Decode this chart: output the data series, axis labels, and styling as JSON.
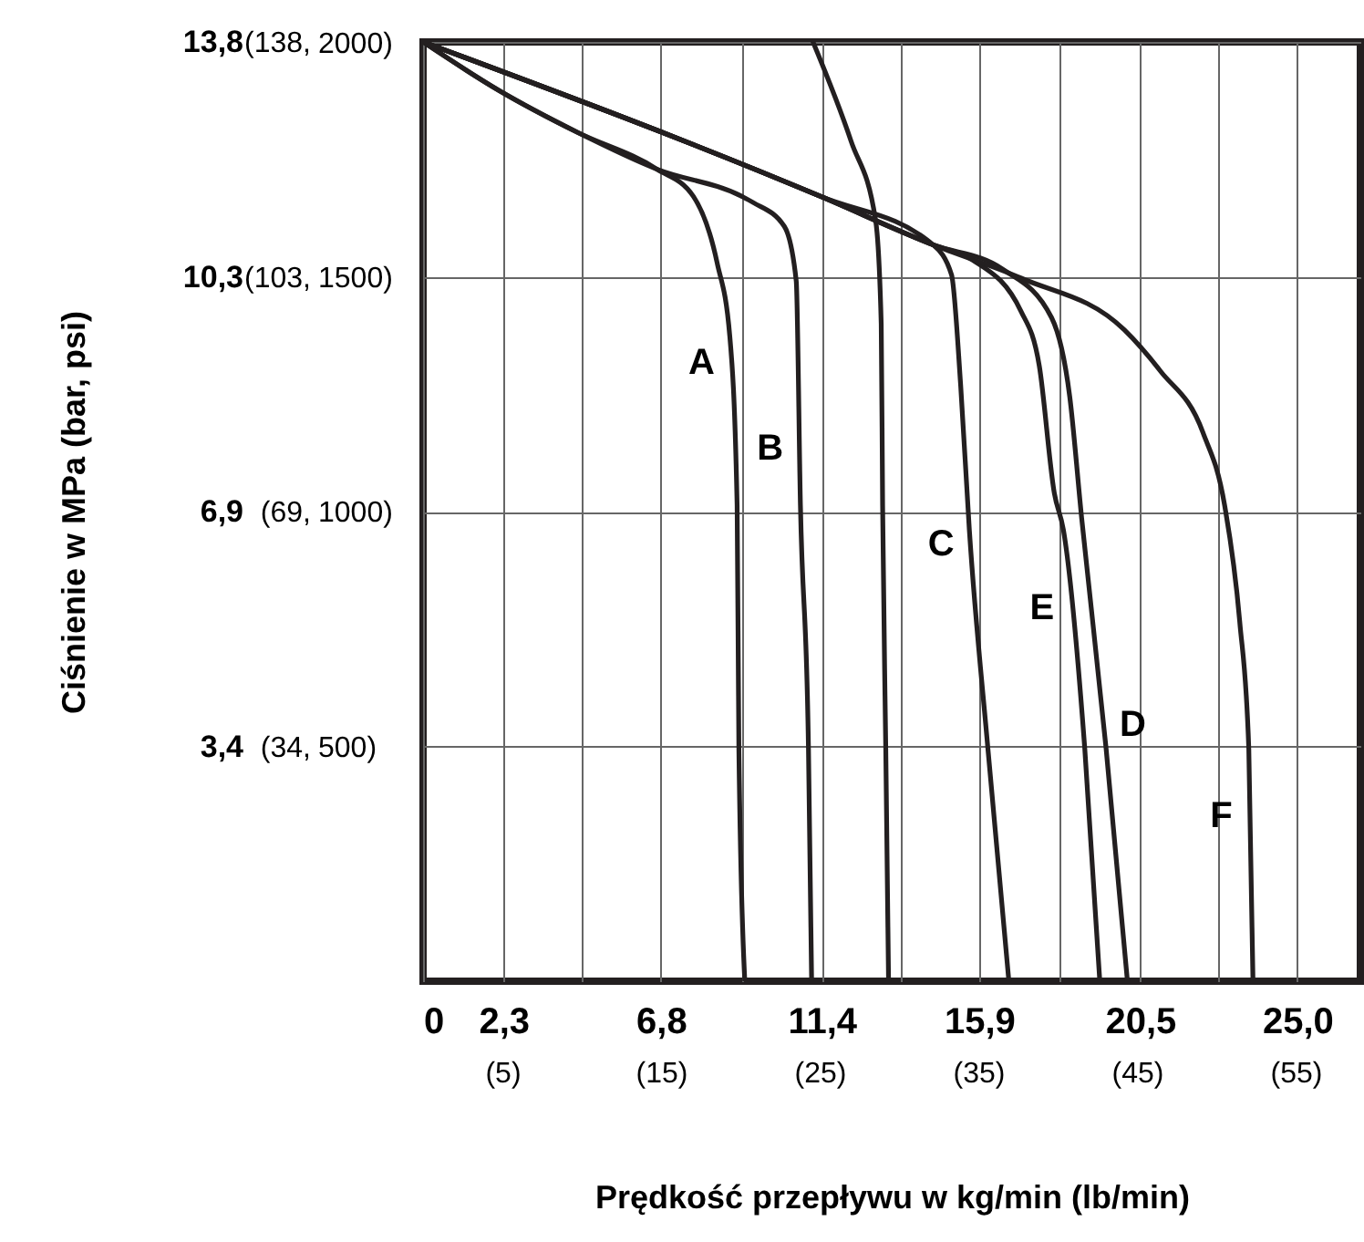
{
  "chart_data": {
    "type": "line",
    "xlabel": "Prędkość przepływu w kg/min (lb/min)",
    "ylabel": "Ciśnienie w MPa (bar, psi)",
    "xlim": [
      0,
      26.8
    ],
    "ylim": [
      0,
      13.8
    ],
    "xticks": [
      0,
      {
        "value": 2.3,
        "label": "2,3"
      },
      {
        "value": 4.55,
        "label": null
      },
      {
        "value": 6.8,
        "label": "6,8"
      },
      {
        "value": 9.1,
        "label": null
      },
      {
        "value": 11.4,
        "label": "11,4"
      },
      {
        "value": 13.65,
        "label": null
      },
      {
        "value": 15.9,
        "label": "15,9"
      },
      {
        "value": 18.2,
        "label": null
      },
      {
        "value": 20.5,
        "label": "20,5"
      },
      {
        "value": 22.75,
        "label": null
      },
      {
        "value": 25.0,
        "label": "25,0"
      }
    ],
    "x2lim": [
      0,
      59.08
    ],
    "x2ticks": [
      {
        "value": 5,
        "label": "(5)"
      },
      {
        "value": 15,
        "label": "(15)"
      },
      {
        "value": 25,
        "label": "(25)"
      },
      {
        "value": 35,
        "label": "(35)"
      },
      {
        "value": 45,
        "label": "(45)"
      },
      {
        "value": 55,
        "label": "(55)"
      }
    ],
    "yticks": [
      {
        "value": 3.45,
        "label": "3,4"
      },
      {
        "value": 6.9,
        "label": "6,9"
      },
      {
        "value": 10.35,
        "label": "10,3"
      },
      {
        "value": 13.8,
        "label": "13,8"
      }
    ],
    "y2lim": [
      0,
      138
    ],
    "y2ticks": [
      {
        "value": 34.5,
        "label": "(34,"
      },
      {
        "value": 69,
        "label": "(69,"
      },
      {
        "value": 103.5,
        "label": "(103,"
      },
      {
        "value": 138,
        "label": "(138,"
      }
    ],
    "y3lim": [
      0,
      2001.5
    ],
    "y3ticks": [
      {
        "value": 500,
        "label": "500)"
      },
      {
        "value": 1000,
        "label": "1000)"
      },
      {
        "value": 1500,
        "label": "1500)"
      },
      {
        "value": 2000,
        "label": "2000)"
      }
    ],
    "grid": true,
    "line_style": "solid",
    "series": [
      {
        "color": "#231f20",
        "x": [
          0,
          2.16,
          4.42,
          6.69,
          7.73,
          8.41,
          8.77,
          8.98,
          9.03,
          9.2
        ],
        "values": [
          13.8,
          13.09,
          12.47,
          11.93,
          11.53,
          10.55,
          9.48,
          6.99,
          3.42,
          0
        ]
      },
      {
        "color": "#231f20",
        "x": [
          0,
          2.16,
          4.42,
          6.69,
          9.12,
          9.44,
          10.33,
          10.67,
          10.79,
          11.02,
          11.11
        ],
        "values": [
          13.8,
          13.09,
          12.47,
          11.93,
          11.53,
          11.44,
          11.09,
          10.29,
          6.99,
          3.42,
          0
        ]
      },
      {
        "color": "#231f20",
        "x": [
          11.15,
          12.24,
          12.94,
          13.1,
          13.14,
          13.23,
          13.31
        ],
        "values": [
          13.8,
          12.34,
          11.18,
          9.66,
          6.99,
          3.42,
          0
        ]
      },
      {
        "color": "#231f20",
        "x": [
          0,
          11.37,
          14.58,
          15.11,
          15.37,
          15.62,
          16.15,
          16.75
        ],
        "values": [
          13.8,
          11.53,
          10.82,
          10.38,
          8.77,
          6.63,
          3.42,
          0
        ]
      },
      {
        "color": "#231f20",
        "x": [
          0,
          11.37,
          14.58,
          15.7,
          17.1,
          17.62,
          18.05,
          18.31,
          18.92,
          19.35
        ],
        "values": [
          13.8,
          11.53,
          10.82,
          10.6,
          9.84,
          9.04,
          7.17,
          6.63,
          3.42,
          0
        ]
      },
      {
        "color": "#231f20",
        "x": [
          0,
          11.37,
          14.58,
          16.58,
          17.97,
          18.49,
          18.83,
          19.53,
          20.14
        ],
        "values": [
          13.8,
          11.53,
          10.82,
          10.46,
          9.75,
          8.59,
          6.81,
          3.42,
          0
        ]
      },
      {
        "color": "#231f20",
        "x": [
          0,
          11.37,
          14.58,
          17.1,
          20.05,
          21.09,
          22.3,
          22.92,
          23.35,
          23.61,
          23.73
        ],
        "values": [
          13.8,
          11.53,
          10.82,
          10.33,
          9.57,
          8.96,
          8.06,
          6.99,
          5.29,
          3.42,
          0
        ]
      }
    ],
    "annotations": [
      {
        "text": "A",
        "x": 8.8,
        "y": 9.09
      },
      {
        "text": "B",
        "x": 10.76,
        "y": 7.83
      },
      {
        "text": "C",
        "x": 15.65,
        "y": 6.42
      },
      {
        "text": "E",
        "x": 18.53,
        "y": 5.48
      },
      {
        "text": "D",
        "x": 19.46,
        "y": 3.77
      },
      {
        "text": "F",
        "x": 23.66,
        "y": 2.43
      }
    ]
  }
}
